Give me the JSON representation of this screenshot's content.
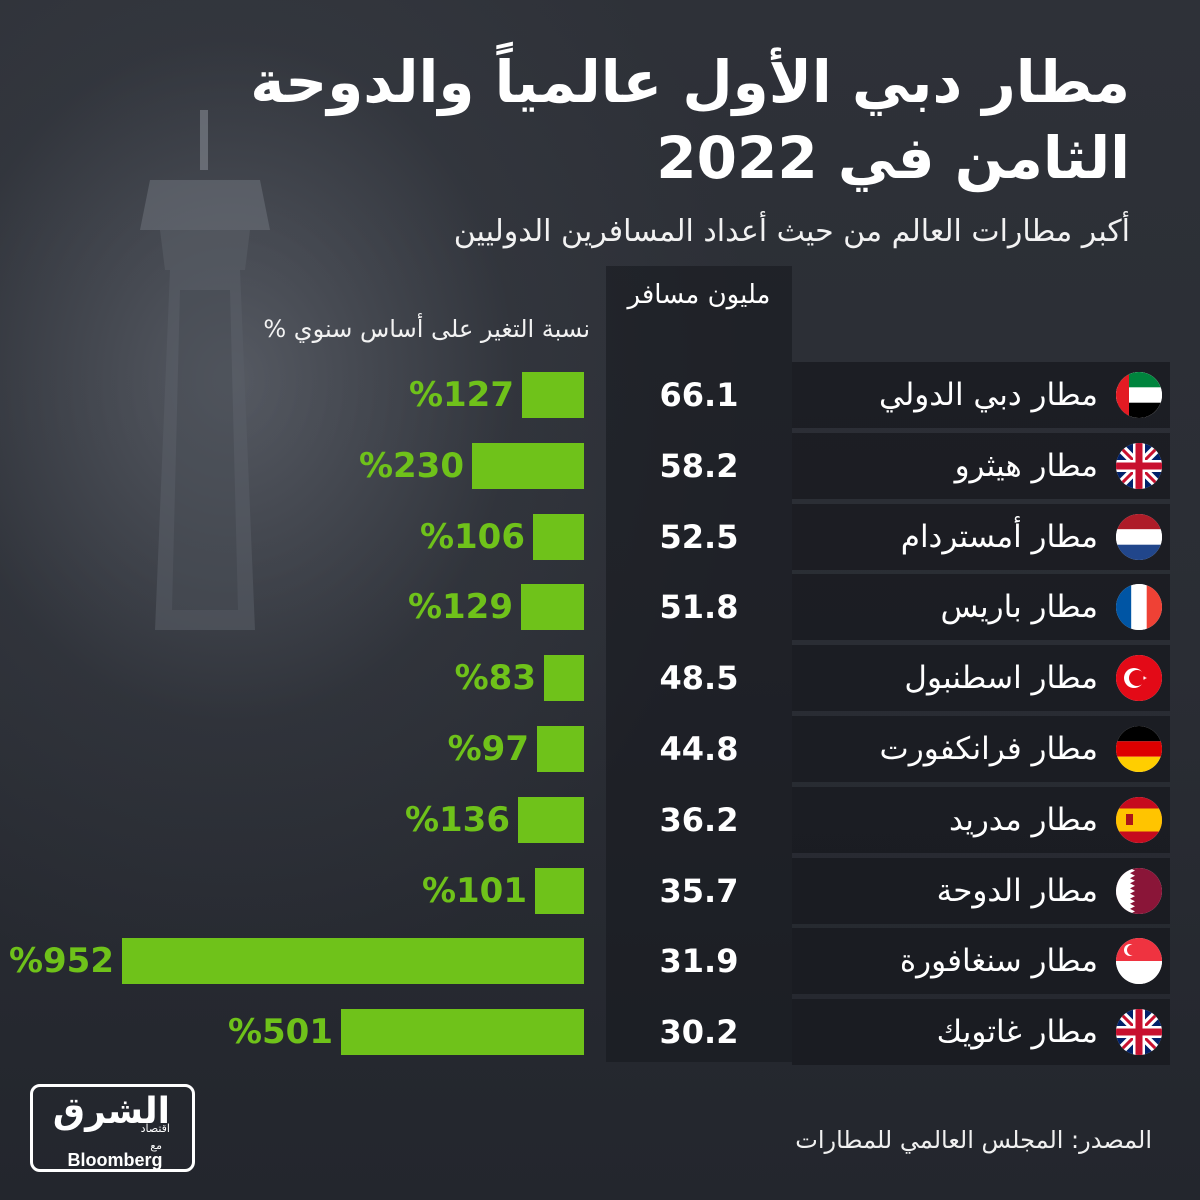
{
  "title": "مطار دبي الأول عالمياً والدوحة الثامن في 2022",
  "subtitle": "أكبر مطارات العالم من حيث أعداد المسافرين الدوليين",
  "colors": {
    "bar": "#6fc21a",
    "background": "#2a2d34",
    "text": "#ffffff"
  },
  "chart_data": {
    "type": "bar",
    "columns": {
      "values_header": "مليون مسافر",
      "change_header": "نسبة التغير على أساس سنوي %"
    },
    "categories": [
      "مطار دبي الدولي",
      "مطار هيثرو",
      "مطار أمستردام",
      "مطار باريس",
      "مطار اسطنبول",
      "مطار فرانكفورت",
      "مطار مدريد",
      "مطار الدوحة",
      "مطار سنغافورة",
      "مطار غاتويك"
    ],
    "flags": [
      "uae-flag-icon",
      "uk-flag-icon",
      "netherlands-flag-icon",
      "france-flag-icon",
      "turkey-flag-icon",
      "germany-flag-icon",
      "spain-flag-icon",
      "qatar-flag-icon",
      "singapore-flag-icon",
      "uk-flag-icon"
    ],
    "passengers_million": [
      "66.1",
      "58.2",
      "52.5",
      "51.8",
      "48.5",
      "44.8",
      "36.2",
      "35.7",
      "31.9",
      "30.2"
    ],
    "yoy_change_percent": [
      127,
      230,
      106,
      129,
      83,
      97,
      136,
      101,
      952,
      501
    ],
    "yoy_change_labels": [
      "%127",
      "%230",
      "%106",
      "%129",
      "%83",
      "%97",
      "%136",
      "%101",
      "%952",
      "%501"
    ]
  },
  "logo": {
    "arabic": "الشرق",
    "sub": "اقتصاد",
    "with": "مع",
    "partner": "Bloomberg"
  },
  "source": "المصدر: المجلس العالمي للمطارات"
}
